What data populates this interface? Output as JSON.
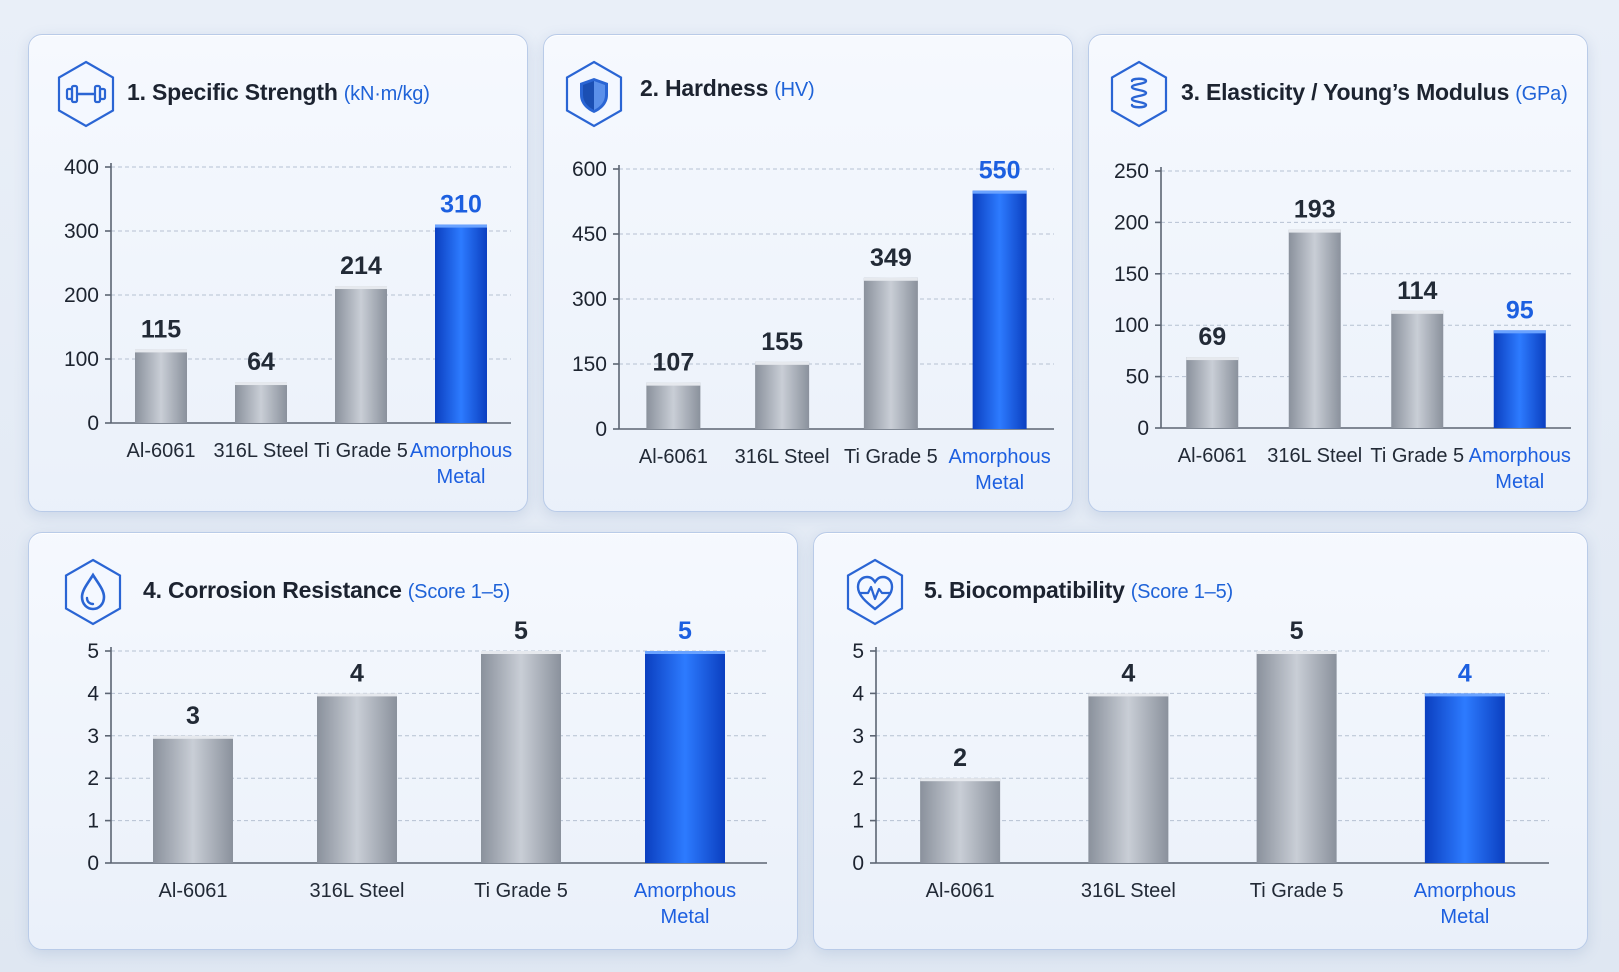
{
  "colors": {
    "accent": "#1c5fe0",
    "bar_gray_light": "#c9ced6",
    "bar_gray_dark": "#8a919c",
    "bar_blue_light": "#2d7bff",
    "bar_blue_dark": "#0b3fc0"
  },
  "icons": [
    "dumbbell-icon",
    "shield-icon",
    "spring-icon",
    "droplet-icon",
    "heart-pulse-icon"
  ],
  "chart_data": [
    {
      "type": "bar",
      "title": "1. Specific Strength",
      "unit": "(kN·m/kg)",
      "icon": "dumbbell-icon",
      "categories": [
        "Al-6061",
        "316L Steel",
        "Ti Grade 5",
        "Amorphous Metal"
      ],
      "values": [
        115,
        64,
        214,
        310
      ],
      "value_labels": [
        "115",
        "64",
        "214",
        "310"
      ],
      "highlight_index": 3,
      "ylim": [
        0,
        400
      ],
      "yticks": [
        0,
        100,
        200,
        300,
        400
      ],
      "grid": true
    },
    {
      "type": "bar",
      "title": "2. Hardness",
      "unit": "(HV)",
      "icon": "shield-icon",
      "categories": [
        "Al-6061",
        "316L Steel",
        "Ti Grade 5",
        "Amorphous Metal"
      ],
      "values": [
        107,
        155,
        349,
        550
      ],
      "value_labels": [
        "107",
        "155",
        "349",
        "550"
      ],
      "highlight_index": 3,
      "ylim": [
        0,
        600
      ],
      "yticks": [
        0,
        150,
        300,
        450,
        600
      ],
      "grid": true
    },
    {
      "type": "bar",
      "title": "3. Elasticity / Young’s Modulus",
      "unit": "(GPa)",
      "icon": "spring-icon",
      "categories": [
        "Al-6061",
        "316L Steel",
        "Ti Grade 5",
        "Amorphous Metal"
      ],
      "values": [
        69,
        193,
        114,
        95
      ],
      "value_labels": [
        "69",
        "193",
        "114",
        "95"
      ],
      "highlight_index": 3,
      "ylim": [
        0,
        250
      ],
      "yticks": [
        0,
        50,
        100,
        150,
        200,
        250
      ],
      "grid": true
    },
    {
      "type": "bar",
      "title": "4. Corrosion Resistance",
      "unit": "(Score 1–5)",
      "icon": "droplet-icon",
      "categories": [
        "Al-6061",
        "316L Steel",
        "Ti Grade 5",
        "Amorphous Metal"
      ],
      "values": [
        3,
        4,
        5,
        5
      ],
      "value_labels": [
        "3",
        "4",
        "5",
        "5"
      ],
      "highlight_index": 3,
      "ylim": [
        0,
        5
      ],
      "yticks": [
        0,
        1,
        2,
        3,
        4,
        5
      ],
      "grid": true
    },
    {
      "type": "bar",
      "title": "5. Biocompatibility",
      "unit": "(Score 1–5)",
      "icon": "heart-pulse-icon",
      "categories": [
        "Al-6061",
        "316L Steel",
        "Ti Grade 5",
        "Amorphous Metal"
      ],
      "values": [
        2,
        4,
        5,
        4
      ],
      "value_labels": [
        "2",
        "4",
        "5",
        "4"
      ],
      "highlight_index": 3,
      "ylim": [
        0,
        5
      ],
      "yticks": [
        0,
        1,
        2,
        3,
        4,
        5
      ],
      "grid": true
    }
  ]
}
